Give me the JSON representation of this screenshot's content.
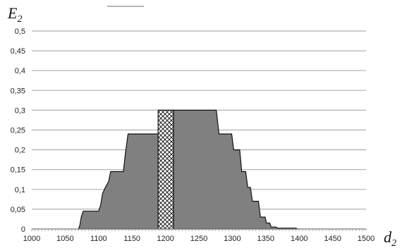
{
  "chart_data": {
    "type": "area",
    "ylabel": {
      "main": "E",
      "sub": "2"
    },
    "xlabel": {
      "main": "d",
      "sub": "2"
    },
    "xlim": [
      1000,
      1500
    ],
    "ylim": [
      0,
      0.5
    ],
    "x_ticks": [
      "1000",
      "1050",
      "1100",
      "1150",
      "1200",
      "1250",
      "1300",
      "1350",
      "1400",
      "1450",
      "1500"
    ],
    "x_tick_values": [
      1000,
      1050,
      1100,
      1150,
      1200,
      1250,
      1300,
      1350,
      1400,
      1450,
      1500
    ],
    "y_ticks": [
      "0",
      "0,05",
      "0,1",
      "0,15",
      "0,2",
      "0,25",
      "0,3",
      "0,35",
      "0,4",
      "0,45",
      "0,5"
    ],
    "y_tick_values": [
      0,
      0.05,
      0.1,
      0.15,
      0.2,
      0.25,
      0.3,
      0.35,
      0.4,
      0.45,
      0.5
    ],
    "grid": true,
    "series": [
      {
        "style": "solid-gray",
        "color": "#808080",
        "points": [
          [
            1070,
            0
          ],
          [
            1072,
            0.01
          ],
          [
            1074,
            0.03
          ],
          [
            1077,
            0.045
          ],
          [
            1100,
            0.045
          ],
          [
            1103,
            0.06
          ],
          [
            1106,
            0.09
          ],
          [
            1110,
            0.105
          ],
          [
            1115,
            0.12
          ],
          [
            1118,
            0.145
          ],
          [
            1137,
            0.145
          ],
          [
            1140,
            0.19
          ],
          [
            1144,
            0.24
          ],
          [
            1189,
            0.24
          ],
          [
            1189,
            0
          ]
        ]
      },
      {
        "style": "crosshatch",
        "color": "#ffffff",
        "points": [
          [
            1189,
            0
          ],
          [
            1189,
            0.3
          ],
          [
            1212,
            0.3
          ],
          [
            1212,
            0
          ]
        ]
      },
      {
        "style": "solid-gray",
        "color": "#808080",
        "points": [
          [
            1212,
            0
          ],
          [
            1212,
            0.3
          ],
          [
            1276,
            0.3
          ],
          [
            1280,
            0.24
          ],
          [
            1299,
            0.24
          ],
          [
            1302,
            0.2
          ],
          [
            1311,
            0.2
          ],
          [
            1314,
            0.145
          ],
          [
            1320,
            0.145
          ],
          [
            1323,
            0.105
          ],
          [
            1327,
            0.105
          ],
          [
            1330,
            0.07
          ],
          [
            1339,
            0.07
          ],
          [
            1342,
            0.03
          ],
          [
            1349,
            0.03
          ],
          [
            1351,
            0.015
          ],
          [
            1356,
            0.015
          ],
          [
            1358,
            0.005
          ],
          [
            1365,
            0.005
          ],
          [
            1368,
            0.002
          ],
          [
            1395,
            0.002
          ],
          [
            1398,
            0
          ]
        ]
      }
    ],
    "legend_fragment_color": "#9a9a9a"
  }
}
